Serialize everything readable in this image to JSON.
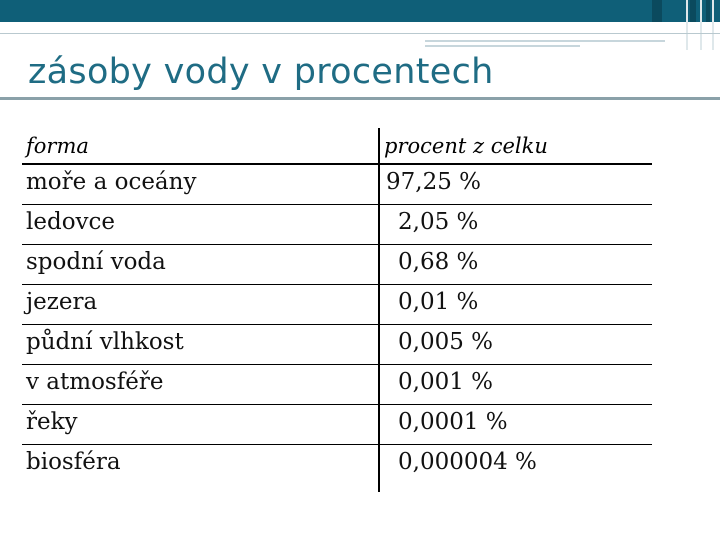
{
  "slide": {
    "title": "zásoby vody v procentech"
  },
  "table": {
    "headers": [
      "forma",
      "procent z celku"
    ],
    "rows": [
      {
        "form": "moře a oceány",
        "value": "97,25 %"
      },
      {
        "form": "ledovce",
        "value": "2,05 %"
      },
      {
        "form": "spodní voda",
        "value": "0,68 %"
      },
      {
        "form": "jezera",
        "value": "0,01 %"
      },
      {
        "form": "půdní vlhkost",
        "value": "0,005 %"
      },
      {
        "form": "v atmosféře",
        "value": "0,001 %"
      },
      {
        "form": "řeky",
        "value": "0,0001 %"
      },
      {
        "form": "biosféra",
        "value": "0,000004 %"
      }
    ]
  },
  "colors": {
    "header_bar": "#0f5f78",
    "title": "#1f6c84"
  }
}
